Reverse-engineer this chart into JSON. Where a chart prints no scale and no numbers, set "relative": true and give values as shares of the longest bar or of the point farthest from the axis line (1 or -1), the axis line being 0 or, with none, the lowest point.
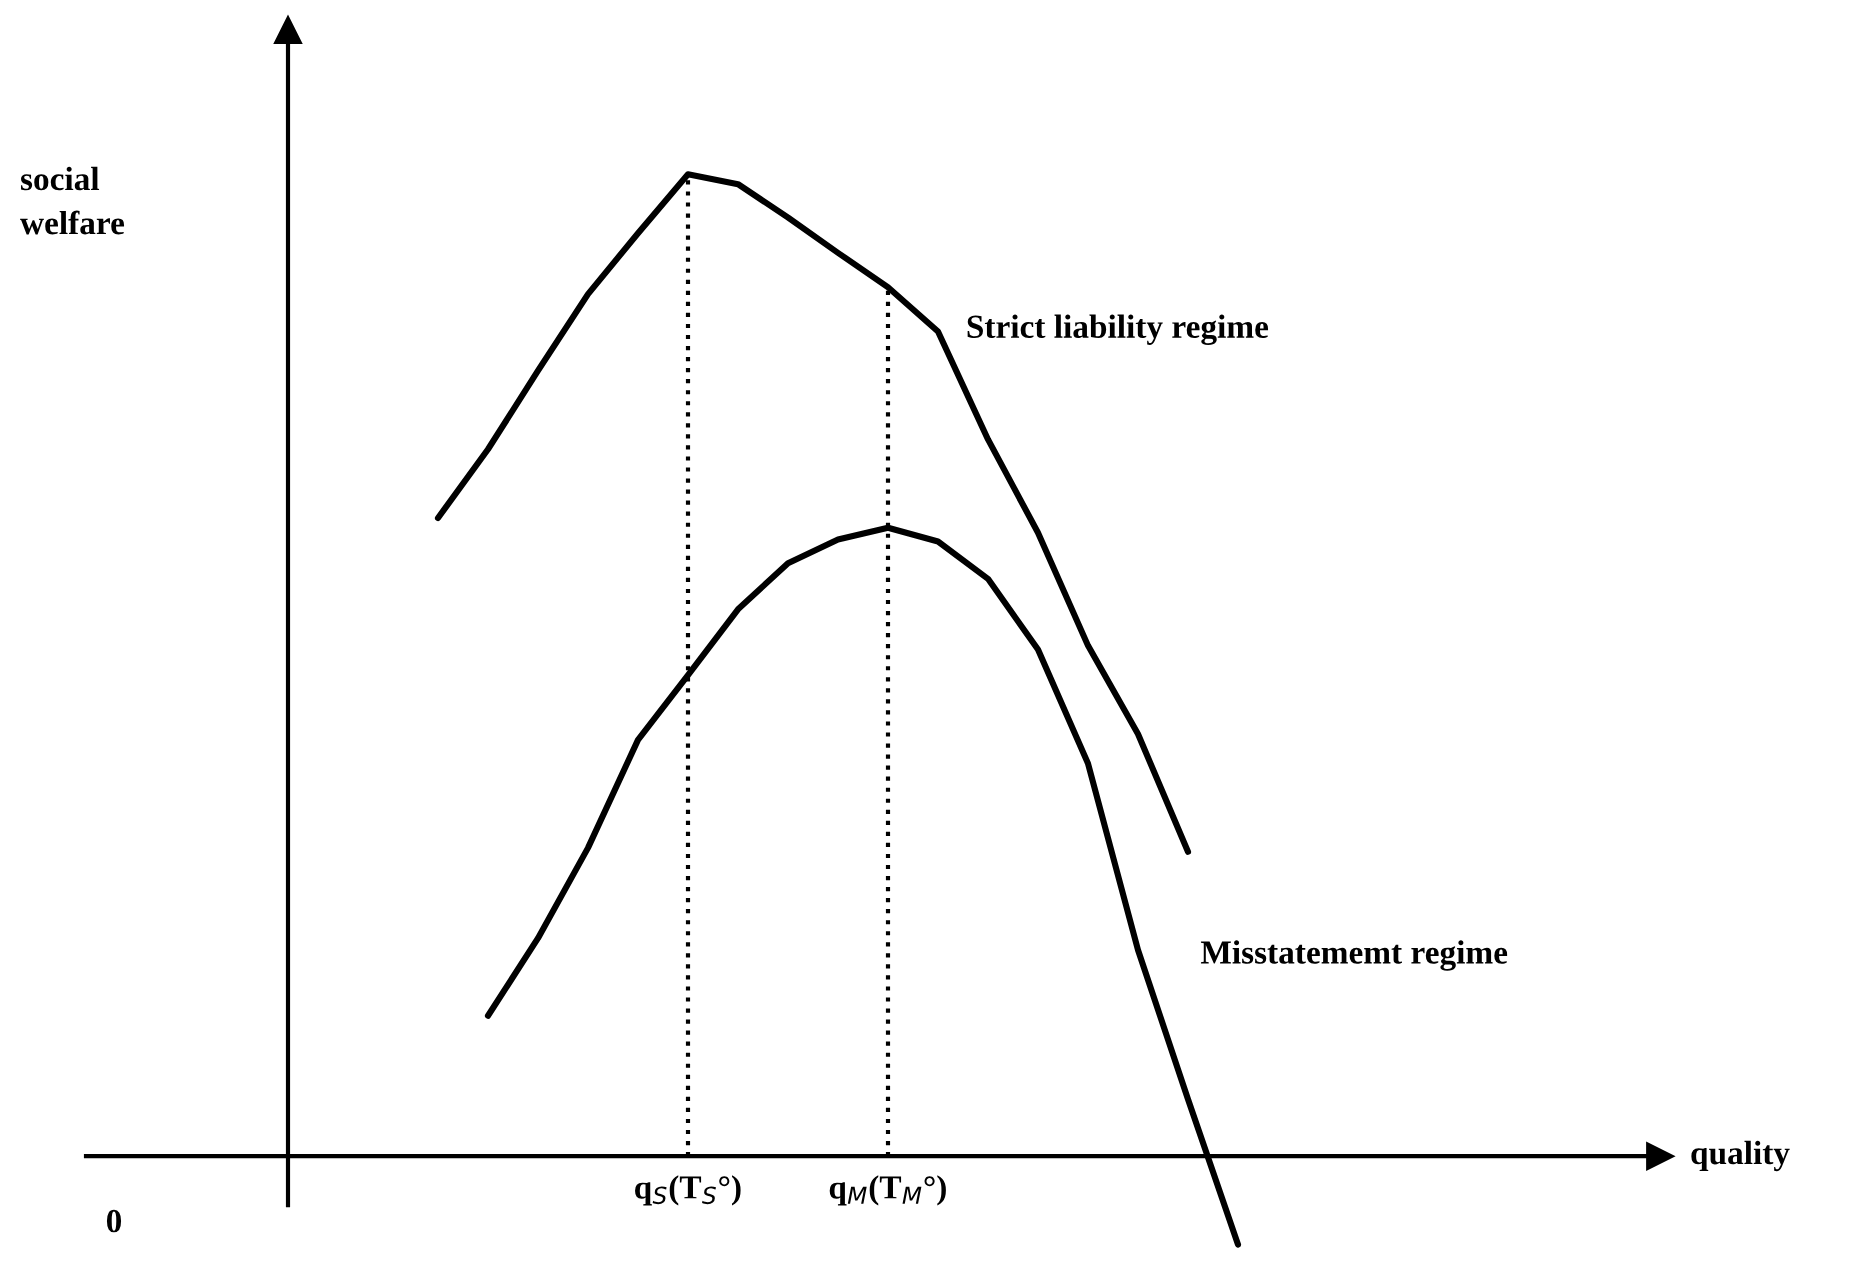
{
  "chart_data": {
    "type": "line",
    "relative": true,
    "annotations": [
      "social welfare",
      "quality",
      "0"
    ],
    "categories": [
      null,
      null,
      null,
      null,
      null,
      "q$_{S}$(T$_{S}$°)",
      null,
      null,
      null,
      "q$_{M}$(T$_{M}$°)",
      null,
      null,
      null,
      null,
      null,
      null,
      null
    ],
    "series": [
      {
        "name": "Strict liability regime",
        "color": "#000000",
        "values": [
          0.65,
          0.72,
          0.8,
          0.878,
          0.94,
          1.0,
          0.99,
          0.956,
          0.92,
          0.885,
          0.84,
          0.73,
          0.635,
          0.52,
          0.43,
          0.31,
          null
        ]
      },
      {
        "name": "Misstatememt regime",
        "color": "#000000",
        "values": [
          null,
          0.143,
          0.222,
          0.314,
          0.424,
          0.49,
          0.557,
          0.604,
          0.628,
          0.64,
          0.626,
          0.588,
          0.516,
          0.4,
          0.21,
          0.058,
          -0.09
        ]
      }
    ],
    "legend": false,
    "grid": "x",
    "marker": "none",
    "line_style": "solid"
  }
}
